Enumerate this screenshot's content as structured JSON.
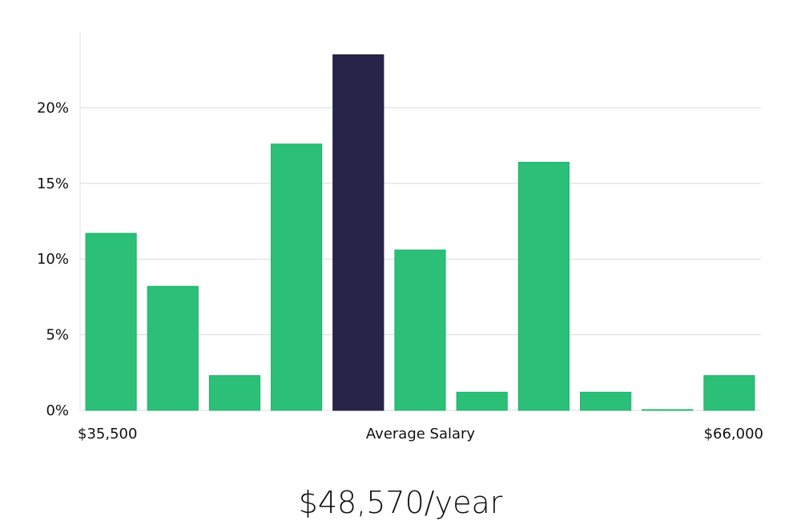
{
  "chart_data": {
    "type": "bar",
    "title": "",
    "xlabel": "Average Salary",
    "ylabel": "",
    "x_min_label": "$35,500",
    "x_max_label": "$66,000",
    "categories": [
      "1",
      "2",
      "3",
      "4",
      "5",
      "6",
      "7",
      "8",
      "9",
      "10",
      "11"
    ],
    "values": [
      11.7,
      8.2,
      2.3,
      17.6,
      23.5,
      10.6,
      1.2,
      16.4,
      1.2,
      0.05,
      2.3
    ],
    "highlight_index": 4,
    "ylim": [
      0,
      25
    ],
    "yticks": [
      0,
      5,
      10,
      15,
      20
    ],
    "ytick_labels": [
      "0%",
      "5%",
      "10%",
      "15%",
      "20%"
    ],
    "grid": true,
    "colors": {
      "bar": "#2bbf77",
      "bar_stroke": "#22b56c",
      "highlight": "#27244a",
      "highlight_stroke": "#1b1838",
      "grid": "#dcdcdc",
      "axis": "#e2e2e2"
    }
  },
  "summary": {
    "average_salary": "$48,570/year"
  }
}
